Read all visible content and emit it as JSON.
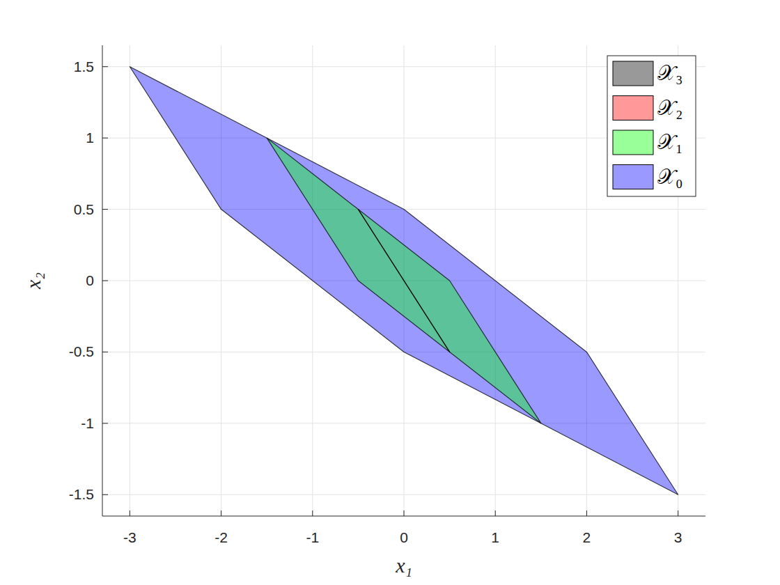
{
  "chart_data": {
    "type": "polygon",
    "xlabel": "x₁",
    "ylabel": "x₂",
    "xlim": [
      -3.3,
      3.3
    ],
    "ylim": [
      -1.65,
      1.65
    ],
    "xticks": [
      -3,
      -2,
      -1,
      0,
      1,
      2,
      3
    ],
    "yticks": [
      -1.5,
      -1,
      -0.5,
      0,
      0.5,
      1,
      1.5
    ],
    "grid": true,
    "legend": "top-right",
    "series": [
      {
        "name": "𝒳₀",
        "color": "#0000ff",
        "x": [
          -3,
          0,
          2,
          3,
          0,
          -2
        ],
        "y": [
          1.5,
          0.5,
          -0.5,
          -1.5,
          -0.5,
          0.5
        ]
      },
      {
        "name": "𝒳₁",
        "color": "#00ff00",
        "x": [
          -1.5,
          0.5,
          1.5,
          -0.5
        ],
        "y": [
          1,
          0,
          -1,
          0
        ]
      },
      {
        "name": "𝒳₂",
        "color": "#ff0000",
        "x": [
          -0.5,
          0.5
        ],
        "y": [
          0.5,
          -0.5
        ]
      },
      {
        "name": "𝒳₃",
        "color": "#000000",
        "x": [
          -0.5,
          0.5
        ],
        "y": [
          0.5,
          -0.5
        ]
      }
    ]
  }
}
